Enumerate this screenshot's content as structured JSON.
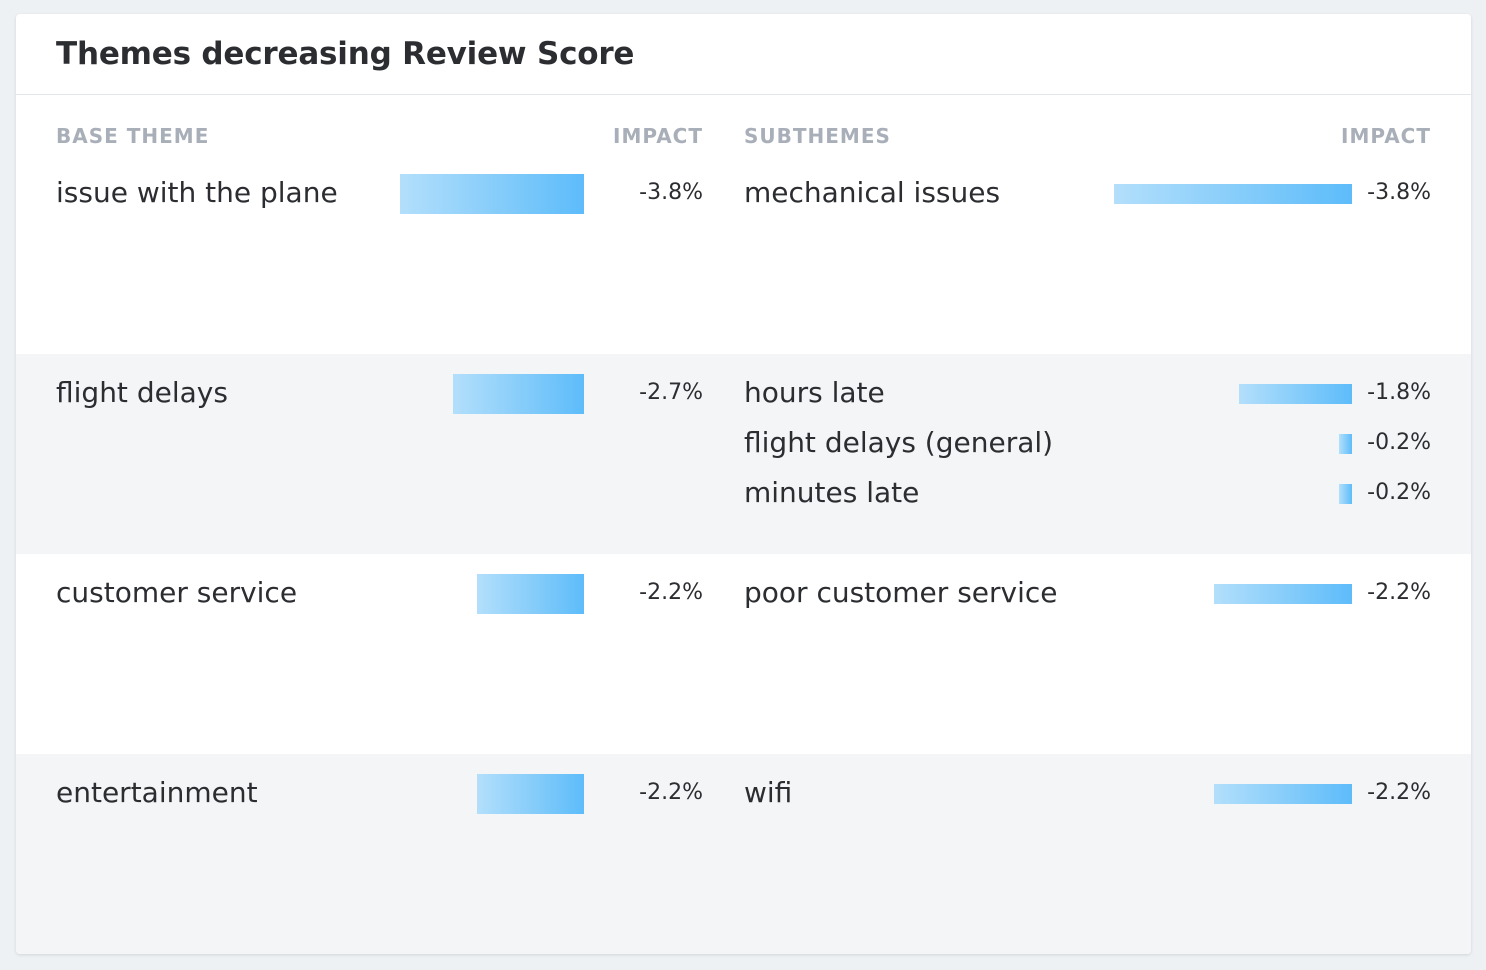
{
  "card": {
    "title": "Themes decreasing Review Score"
  },
  "headers": {
    "base_theme": "BASE THEME",
    "base_impact": "IMPACT",
    "subthemes": "SUBTHEMES",
    "sub_impact": "IMPACT"
  },
  "colors": {
    "bar_start": "#b3dffb",
    "bar_end": "#5dbcfa",
    "alt_row": "#f4f5f7",
    "header_text": "#a8afb8"
  },
  "chart_data": {
    "type": "bar",
    "title": "Themes decreasing Review Score",
    "unit": "%",
    "themes": [
      {
        "name": "issue with the plane",
        "impact": -3.8,
        "impact_label": "-3.8%",
        "subthemes": [
          {
            "name": "mechanical issues",
            "impact": -3.8,
            "impact_label": "-3.8%"
          }
        ]
      },
      {
        "name": "flight delays",
        "impact": -2.7,
        "impact_label": "-2.7%",
        "subthemes": [
          {
            "name": "hours late",
            "impact": -1.8,
            "impact_label": "-1.8%"
          },
          {
            "name": "flight delays (general)",
            "impact": -0.2,
            "impact_label": "-0.2%"
          },
          {
            "name": "minutes late",
            "impact": -0.2,
            "impact_label": "-0.2%"
          }
        ]
      },
      {
        "name": "customer service",
        "impact": -2.2,
        "impact_label": "-2.2%",
        "subthemes": [
          {
            "name": "poor customer service",
            "impact": -2.2,
            "impact_label": "-2.2%"
          }
        ]
      },
      {
        "name": "entertainment",
        "impact": -2.2,
        "impact_label": "-2.2%",
        "subthemes": [
          {
            "name": "wifi",
            "impact": -2.2,
            "impact_label": "-2.2%"
          }
        ]
      }
    ]
  }
}
